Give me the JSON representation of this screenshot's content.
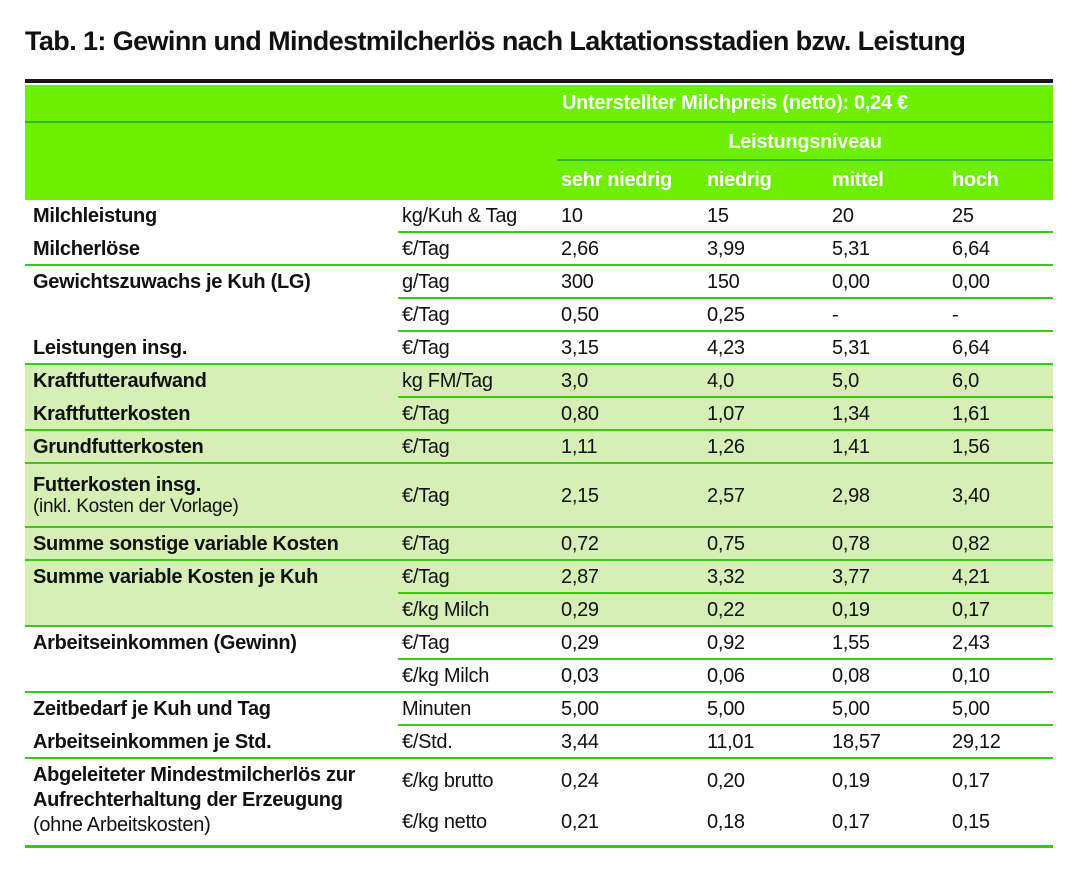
{
  "title": "Tab. 1: Gewinn und Mindestmilcherlös nach Laktationsstadien bzw. Leistung",
  "colors": {
    "band_green": "#6cf000",
    "header_rule_green": "#2fb932",
    "body_rule_green": "#3cc916",
    "light_green_row": "#d6efb4",
    "title_rule_black": "#161616",
    "header_text": "#ffffff",
    "body_text": "#111111"
  },
  "table": {
    "header": {
      "milk_price": "Unterstellter Milchpreis (netto): 0,24 €",
      "level_title": "Leistungsniveau",
      "levels": [
        "sehr niedrig",
        "niedrig",
        "mittel",
        "hoch"
      ]
    },
    "rows": [
      {
        "label": "Milchleistung",
        "unit": "kg/Kuh & Tag",
        "values": [
          "10",
          "15",
          "20",
          "25"
        ]
      },
      {
        "label": "Milcherlöse",
        "unit": "€/Tag",
        "values": [
          "2,66",
          "3,99",
          "5,31",
          "6,64"
        ]
      },
      {
        "label": "Gewichtszuwachs je Kuh (LG)",
        "unit": "g/Tag",
        "values": [
          "300",
          "150",
          "0,00",
          "0,00"
        ]
      },
      {
        "label": "",
        "unit": "€/Tag",
        "values": [
          "0,50",
          "0,25",
          "-",
          "-"
        ]
      },
      {
        "label": "Leistungen insg.",
        "unit": "€/Tag",
        "values": [
          "3,15",
          "4,23",
          "5,31",
          "6,64"
        ]
      },
      {
        "label": "Kraftfutteraufwand",
        "unit": "kg FM/Tag",
        "values": [
          "3,0",
          "4,0",
          "5,0",
          "6,0"
        ]
      },
      {
        "label": "Kraftfutterkosten",
        "unit": "€/Tag",
        "values": [
          "0,80",
          "1,07",
          "1,34",
          "1,61"
        ]
      },
      {
        "label": "Grundfutterkosten",
        "unit": "€/Tag",
        "values": [
          "1,11",
          "1,26",
          "1,41",
          "1,56"
        ]
      },
      {
        "label": "Futterkosten insg.",
        "sublabel": "(inkl. Kosten der Vorlage)",
        "unit": "€/Tag",
        "values": [
          "2,15",
          "2,57",
          "2,98",
          "3,40"
        ]
      },
      {
        "label": "Summe sonstige variable Kosten",
        "unit": "€/Tag",
        "values": [
          "0,72",
          "0,75",
          "0,78",
          "0,82"
        ]
      },
      {
        "label": "Summe variable Kosten je Kuh",
        "unit": "€/Tag",
        "values": [
          "2,87",
          "3,32",
          "3,77",
          "4,21"
        ]
      },
      {
        "label": "",
        "unit": "€/kg Milch",
        "values": [
          "0,29",
          "0,22",
          "0,19",
          "0,17"
        ]
      },
      {
        "label": "Arbeitseinkommen (Gewinn)",
        "unit": "€/Tag",
        "values": [
          "0,29",
          "0,92",
          "1,55",
          "2,43"
        ]
      },
      {
        "label": "",
        "unit": "€/kg Milch",
        "values": [
          "0,03",
          "0,06",
          "0,08",
          "0,10"
        ]
      },
      {
        "label": "Zeitbedarf je Kuh und Tag",
        "unit": "Minuten",
        "values": [
          "5,00",
          "5,00",
          "5,00",
          "5,00"
        ]
      },
      {
        "label": "Arbeitseinkommen je Std.",
        "unit": "€/Std.",
        "values": [
          "3,44",
          "11,01",
          "18,57",
          "29,12"
        ]
      }
    ],
    "footer_group": {
      "label_line1": "Abgeleiteter Mindestmilcherlös zur",
      "label_line2": "Aufrechterhaltung der Erzeugung",
      "label_line3": "(ohne Arbeitskosten)",
      "rows": [
        {
          "unit": "€/kg brutto",
          "values": [
            "0,24",
            "0,20",
            "0,19",
            "0,17"
          ]
        },
        {
          "unit": "€/kg netto",
          "values": [
            "0,21",
            "0,18",
            "0,17",
            "0,15"
          ]
        }
      ]
    }
  }
}
